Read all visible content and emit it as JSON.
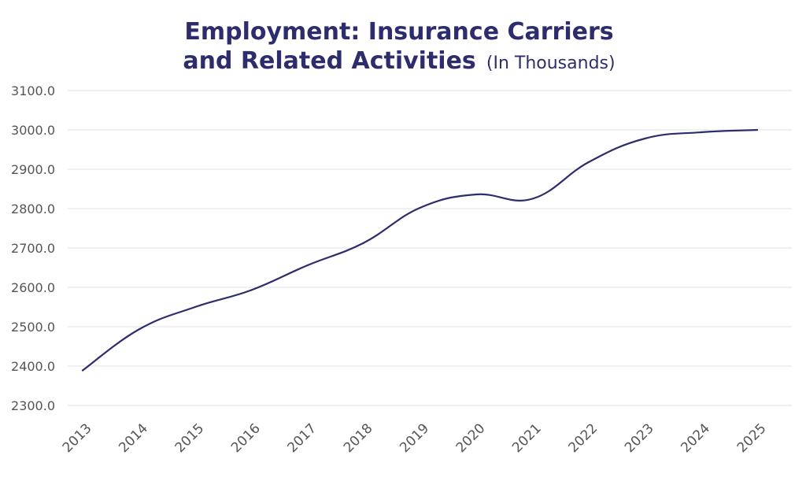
{
  "chart_data": {
    "type": "line",
    "title_line1": "Employment: Insurance Carriers",
    "title_line2": "and Related Activities",
    "subtitle": "(In Thousands)",
    "xlabel": "",
    "ylabel": "",
    "categories": [
      "2013",
      "2014",
      "2015",
      "2016",
      "2017",
      "2018",
      "2019",
      "2020",
      "2021",
      "2022",
      "2023",
      "2024",
      "2025"
    ],
    "ylim": [
      2300,
      3100
    ],
    "yticks": [
      "2300.0",
      "2400.0",
      "2500.0",
      "2600.0",
      "2700.0",
      "2800.0",
      "2900.0",
      "3000.0",
      "3100.0"
    ],
    "grid": true,
    "legend": "none",
    "series": [
      {
        "color": "#2d2d6e",
        "values": [
          2389,
          2493,
          2550,
          2593,
          2656,
          2713,
          2802,
          2836,
          2825,
          2918,
          2978,
          2994,
          3000
        ]
      }
    ]
  }
}
